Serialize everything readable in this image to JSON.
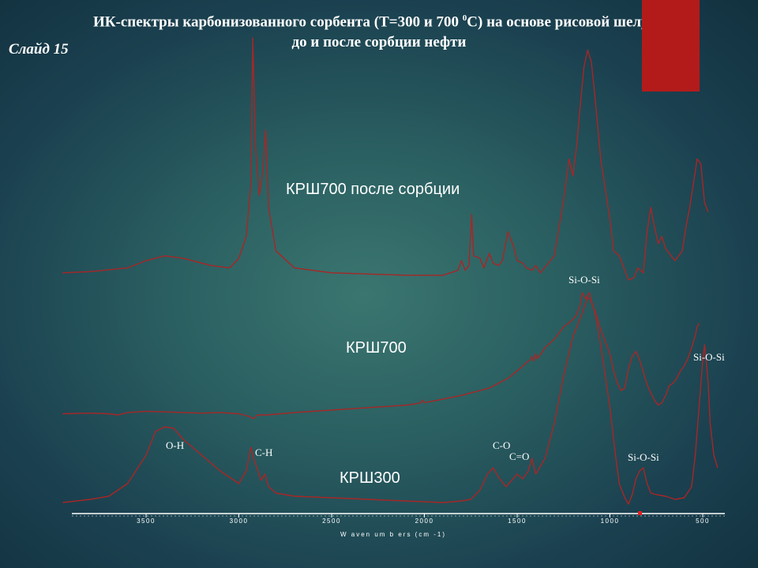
{
  "slide": {
    "title_part1": "ИК-спектры карбонизованного сорбента (Т=300 и 700 ",
    "title_sup": "0",
    "title_part2": "С) на основе рисовой шелухи",
    "title_line2": "до и после сорбции нефти",
    "number": "Слайд 15"
  },
  "chart_data": {
    "type": "line",
    "xlabel": "W aven um b ers (cm -1)",
    "ylabel": "",
    "x_reversed": true,
    "xlim": [
      4000,
      400
    ],
    "x_ticks": [
      3500,
      3000,
      2500,
      2000,
      1500,
      1000,
      500
    ],
    "x_tick_labels": [
      "3500",
      "3000",
      "2500",
      "2000",
      "1500",
      "1000",
      "500"
    ],
    "y_units": "relative (stacked, offset)",
    "series": [
      {
        "name": "КРШ700 после сорбции",
        "points": [
          [
            3950,
            0.03
          ],
          [
            3800,
            0.035
          ],
          [
            3600,
            0.05
          ],
          [
            3500,
            0.08
          ],
          [
            3400,
            0.1
          ],
          [
            3300,
            0.09
          ],
          [
            3150,
            0.06
          ],
          [
            3050,
            0.05
          ],
          [
            3000,
            0.09
          ],
          [
            2960,
            0.18
          ],
          [
            2935,
            0.4
          ],
          [
            2925,
            1.0
          ],
          [
            2910,
            0.55
          ],
          [
            2890,
            0.35
          ],
          [
            2870,
            0.45
          ],
          [
            2855,
            0.62
          ],
          [
            2840,
            0.3
          ],
          [
            2800,
            0.12
          ],
          [
            2700,
            0.05
          ],
          [
            2500,
            0.03
          ],
          [
            2100,
            0.02
          ],
          [
            1900,
            0.02
          ],
          [
            1820,
            0.04
          ],
          [
            1800,
            0.08
          ],
          [
            1780,
            0.04
          ],
          [
            1760,
            0.06
          ],
          [
            1745,
            0.27
          ],
          [
            1735,
            0.1
          ],
          [
            1700,
            0.09
          ],
          [
            1680,
            0.05
          ],
          [
            1650,
            0.11
          ],
          [
            1630,
            0.07
          ],
          [
            1600,
            0.06
          ],
          [
            1580,
            0.08
          ],
          [
            1550,
            0.2
          ],
          [
            1520,
            0.14
          ],
          [
            1500,
            0.08
          ],
          [
            1470,
            0.07
          ],
          [
            1450,
            0.05
          ],
          [
            1420,
            0.04
          ],
          [
            1400,
            0.06
          ],
          [
            1375,
            0.03
          ],
          [
            1300,
            0.1
          ],
          [
            1250,
            0.33
          ],
          [
            1220,
            0.5
          ],
          [
            1200,
            0.43
          ],
          [
            1180,
            0.55
          ],
          [
            1160,
            0.72
          ],
          [
            1140,
            0.88
          ],
          [
            1120,
            0.95
          ],
          [
            1100,
            0.9
          ],
          [
            1080,
            0.75
          ],
          [
            1050,
            0.5
          ],
          [
            1000,
            0.25
          ],
          [
            980,
            0.12
          ],
          [
            950,
            0.1
          ],
          [
            900,
            0.0
          ],
          [
            870,
            0.01
          ],
          [
            850,
            0.05
          ],
          [
            820,
            0.03
          ],
          [
            800,
            0.2
          ],
          [
            780,
            0.3
          ],
          [
            760,
            0.22
          ],
          [
            740,
            0.15
          ],
          [
            720,
            0.18
          ],
          [
            700,
            0.13
          ],
          [
            670,
            0.1
          ],
          [
            650,
            0.08
          ],
          [
            610,
            0.12
          ],
          [
            590,
            0.22
          ],
          [
            570,
            0.3
          ],
          [
            550,
            0.4
          ],
          [
            530,
            0.5
          ],
          [
            510,
            0.48
          ],
          [
            490,
            0.32
          ],
          [
            470,
            0.28
          ]
        ]
      },
      {
        "name": "КРШ700",
        "points": [
          [
            3950,
            0.01
          ],
          [
            3800,
            0.015
          ],
          [
            3700,
            0.01
          ],
          [
            3650,
            0.0
          ],
          [
            3600,
            0.02
          ],
          [
            3500,
            0.03
          ],
          [
            3400,
            0.025
          ],
          [
            3300,
            0.02
          ],
          [
            3200,
            0.015
          ],
          [
            3100,
            0.02
          ],
          [
            3000,
            0.01
          ],
          [
            2950,
            -0.01
          ],
          [
            2920,
            -0.03
          ],
          [
            2900,
            0.0
          ],
          [
            2850,
            0.0
          ],
          [
            2700,
            0.02
          ],
          [
            2500,
            0.04
          ],
          [
            2300,
            0.06
          ],
          [
            2100,
            0.08
          ],
          [
            2050,
            0.09
          ],
          [
            2020,
            0.1
          ],
          [
            2010,
            0.12
          ],
          [
            2000,
            0.1
          ],
          [
            1900,
            0.13
          ],
          [
            1800,
            0.16
          ],
          [
            1700,
            0.2
          ],
          [
            1650,
            0.22
          ],
          [
            1600,
            0.26
          ],
          [
            1550,
            0.3
          ],
          [
            1500,
            0.36
          ],
          [
            1470,
            0.4
          ],
          [
            1450,
            0.43
          ],
          [
            1430,
            0.45
          ],
          [
            1420,
            0.48
          ],
          [
            1410,
            0.44
          ],
          [
            1400,
            0.5
          ],
          [
            1390,
            0.46
          ],
          [
            1350,
            0.55
          ],
          [
            1300,
            0.62
          ],
          [
            1250,
            0.72
          ],
          [
            1200,
            0.78
          ],
          [
            1180,
            0.82
          ],
          [
            1160,
            0.9
          ],
          [
            1150,
            1.0
          ],
          [
            1140,
            0.97
          ],
          [
            1130,
            0.95
          ],
          [
            1110,
            1.0
          ],
          [
            1100,
            0.92
          ],
          [
            1080,
            0.85
          ],
          [
            1050,
            0.7
          ],
          [
            1000,
            0.5
          ],
          [
            980,
            0.36
          ],
          [
            960,
            0.26
          ],
          [
            940,
            0.2
          ],
          [
            920,
            0.22
          ],
          [
            900,
            0.38
          ],
          [
            880,
            0.48
          ],
          [
            860,
            0.52
          ],
          [
            840,
            0.45
          ],
          [
            820,
            0.35
          ],
          [
            800,
            0.25
          ],
          [
            780,
            0.18
          ],
          [
            760,
            0.12
          ],
          [
            740,
            0.08
          ],
          [
            720,
            0.1
          ],
          [
            700,
            0.16
          ],
          [
            680,
            0.24
          ],
          [
            660,
            0.26
          ],
          [
            640,
            0.3
          ],
          [
            620,
            0.36
          ],
          [
            600,
            0.4
          ],
          [
            580,
            0.46
          ],
          [
            560,
            0.55
          ],
          [
            540,
            0.65
          ],
          [
            530,
            0.72
          ],
          [
            520,
            0.75
          ]
        ]
      },
      {
        "name": "КРШ300",
        "points": [
          [
            3950,
            0.0
          ],
          [
            3800,
            0.02
          ],
          [
            3700,
            0.04
          ],
          [
            3600,
            0.12
          ],
          [
            3500,
            0.3
          ],
          [
            3450,
            0.45
          ],
          [
            3400,
            0.48
          ],
          [
            3350,
            0.47
          ],
          [
            3300,
            0.4
          ],
          [
            3200,
            0.3
          ],
          [
            3100,
            0.2
          ],
          [
            3000,
            0.12
          ],
          [
            2960,
            0.2
          ],
          [
            2935,
            0.35
          ],
          [
            2920,
            0.28
          ],
          [
            2880,
            0.14
          ],
          [
            2860,
            0.18
          ],
          [
            2840,
            0.1
          ],
          [
            2800,
            0.06
          ],
          [
            2700,
            0.04
          ],
          [
            2500,
            0.03
          ],
          [
            2300,
            0.02
          ],
          [
            2100,
            0.01
          ],
          [
            1900,
            0.0
          ],
          [
            1800,
            0.01
          ],
          [
            1750,
            0.02
          ],
          [
            1700,
            0.08
          ],
          [
            1660,
            0.18
          ],
          [
            1630,
            0.22
          ],
          [
            1600,
            0.16
          ],
          [
            1560,
            0.1
          ],
          [
            1530,
            0.14
          ],
          [
            1500,
            0.18
          ],
          [
            1470,
            0.15
          ],
          [
            1440,
            0.2
          ],
          [
            1420,
            0.28
          ],
          [
            1400,
            0.18
          ],
          [
            1350,
            0.28
          ],
          [
            1300,
            0.5
          ],
          [
            1250,
            0.8
          ],
          [
            1200,
            1.05
          ],
          [
            1150,
            1.2
          ],
          [
            1120,
            1.3
          ],
          [
            1100,
            1.28
          ],
          [
            1080,
            1.2
          ],
          [
            1050,
            1.0
          ],
          [
            1000,
            0.6
          ],
          [
            970,
            0.3
          ],
          [
            950,
            0.12
          ],
          [
            920,
            0.03
          ],
          [
            900,
            -0.01
          ],
          [
            880,
            0.05
          ],
          [
            860,
            0.15
          ],
          [
            840,
            0.2
          ],
          [
            820,
            0.22
          ],
          [
            800,
            0.12
          ],
          [
            780,
            0.06
          ],
          [
            750,
            0.05
          ],
          [
            700,
            0.04
          ],
          [
            650,
            0.02
          ],
          [
            600,
            0.03
          ],
          [
            560,
            0.1
          ],
          [
            540,
            0.3
          ],
          [
            520,
            0.6
          ],
          [
            500,
            0.9
          ],
          [
            490,
            1.0
          ],
          [
            480,
            0.88
          ],
          [
            470,
            0.75
          ],
          [
            460,
            0.5
          ],
          [
            440,
            0.3
          ],
          [
            420,
            0.22
          ]
        ]
      }
    ],
    "annotations": [
      {
        "text": "Si-O-Si",
        "x": 1100,
        "series": "КРШ700"
      },
      {
        "text": "Si-O-Si",
        "x": 490,
        "series": "КРШ300"
      },
      {
        "text": "Si-O-Si",
        "x": 820,
        "series": "КРШ300"
      },
      {
        "text": "O-H",
        "x": 3380,
        "series": "КРШ300"
      },
      {
        "text": "C-H",
        "x": 2920,
        "series": "КРШ300"
      },
      {
        "text": "C-O",
        "x": 1630,
        "series": "КРШ300"
      },
      {
        "text": "C=O",
        "x": 1580,
        "series": "КРШ300"
      }
    ],
    "colors": {
      "line": "#a82626",
      "axis": "#ffffff",
      "marker": "#e02020"
    },
    "grid": false,
    "legend": "none (series labelled directly on chart)"
  }
}
